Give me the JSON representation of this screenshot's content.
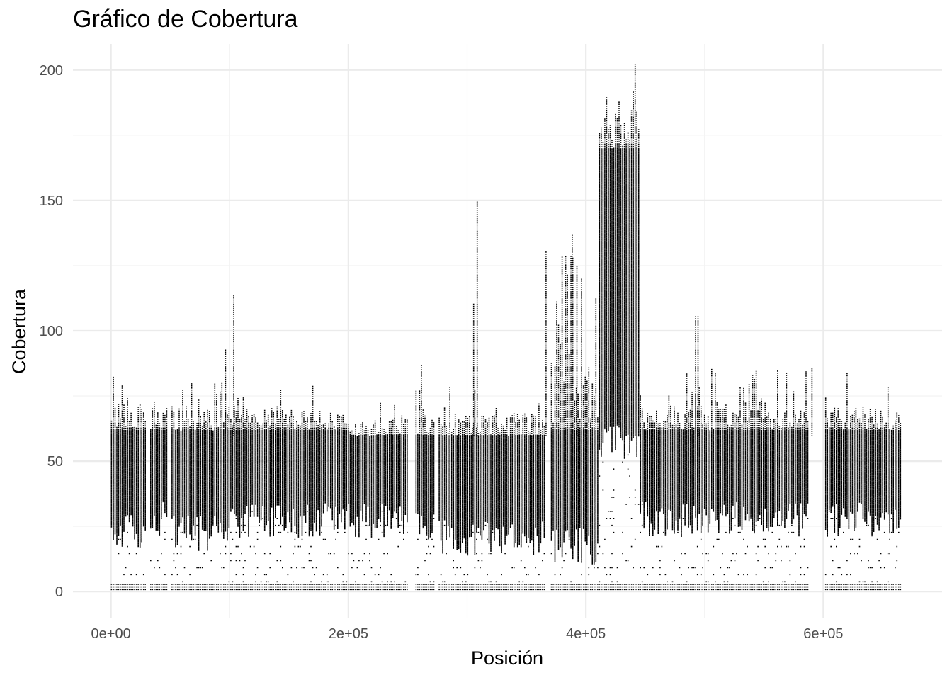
{
  "chart_data": {
    "type": "scatter",
    "title": "Gráfico de Cobertura",
    "xlabel": "Posición",
    "ylabel": "Cobertura",
    "xlim": [
      -32000,
      700000
    ],
    "ylim": [
      -10,
      210
    ],
    "x_ticks": [
      0,
      200000,
      400000,
      600000
    ],
    "x_tick_labels": [
      "0e+00",
      "2e+05",
      "4e+05",
      "6e+05"
    ],
    "y_ticks": [
      0,
      50,
      100,
      150,
      200
    ],
    "y_tick_labels": [
      "0",
      "50",
      "100",
      "150",
      "200"
    ],
    "grid": true,
    "point_color": "#000000",
    "gaps": [
      [
        30000,
        32000
      ],
      [
        48000,
        50000
      ],
      [
        250000,
        255000
      ],
      [
        272000,
        275000
      ],
      [
        366000,
        370000
      ],
      [
        588000,
        600000
      ]
    ],
    "x_max": 666000,
    "regions": [
      {
        "x": [
          0,
          30000
        ],
        "low": 20,
        "high": 62,
        "peak": 88
      },
      {
        "x": [
          32000,
          48000
        ],
        "low": 25,
        "high": 62,
        "peak": 82
      },
      {
        "x": [
          50000,
          100000
        ],
        "low": 20,
        "high": 62,
        "peak": 82
      },
      {
        "x": [
          100000,
          200000
        ],
        "low": 25,
        "high": 62,
        "peak": 80
      },
      {
        "x": [
          200000,
          250000
        ],
        "low": 25,
        "high": 60,
        "peak": 74
      },
      {
        "x": [
          255000,
          272000
        ],
        "low": 22,
        "high": 60,
        "peak": 88
      },
      {
        "x": [
          275000,
          366000
        ],
        "low": 18,
        "high": 60,
        "peak": 80
      },
      {
        "x": [
          370000,
          410000
        ],
        "low": 15,
        "high": 62,
        "peak": 131
      },
      {
        "x": [
          410000,
          445000
        ],
        "low": 55,
        "high": 170,
        "peak": 203
      },
      {
        "x": [
          445000,
          588000
        ],
        "low": 25,
        "high": 62,
        "peak": 86
      },
      {
        "x": [
          600000,
          666000
        ],
        "low": 25,
        "high": 62,
        "peak": 84
      }
    ],
    "spikes": [
      {
        "x": 103000,
        "value": 114
      },
      {
        "x": 96000,
        "value": 93
      },
      {
        "x": 308000,
        "value": 150
      },
      {
        "x": 305000,
        "value": 111
      },
      {
        "x": 366000,
        "value": 131
      },
      {
        "x": 388000,
        "value": 137
      },
      {
        "x": 392000,
        "value": 125
      },
      {
        "x": 396000,
        "value": 120
      },
      {
        "x": 441000,
        "value": 203
      },
      {
        "x": 492000,
        "value": 106
      },
      {
        "x": 494000,
        "value": 106
      },
      {
        "x": 590000,
        "value": 86
      }
    ]
  }
}
